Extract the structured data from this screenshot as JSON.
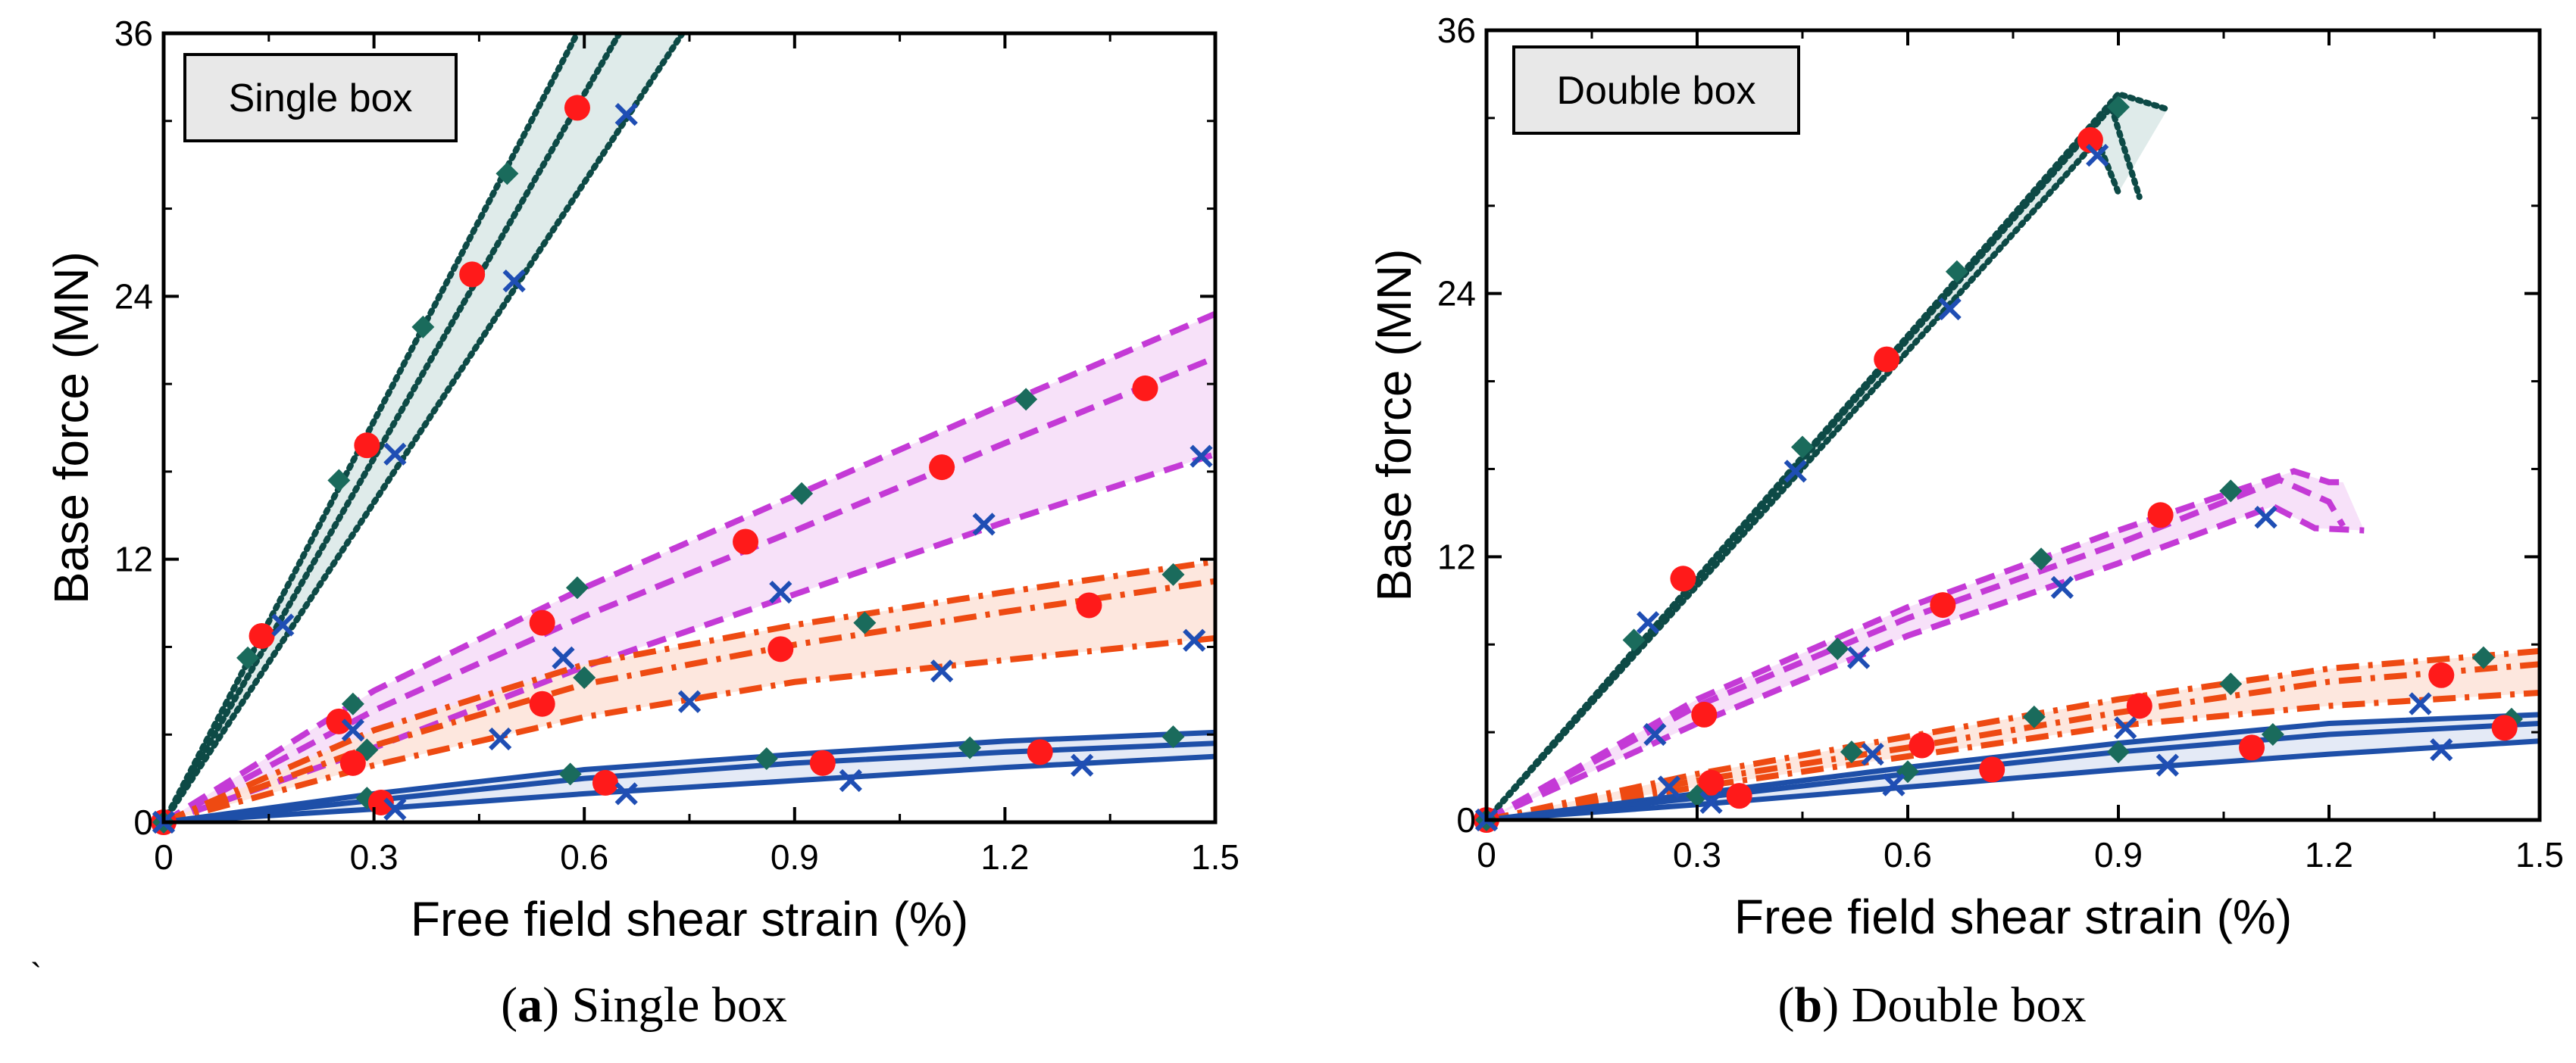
{
  "chart_data": [
    {
      "id": "a",
      "type": "line",
      "panel_label": "a",
      "caption": "Single box",
      "inset_label": "Single box",
      "xlabel": "Free field shear strain (%)",
      "ylabel": "Base force (MN)",
      "xlim": [
        0,
        1.5
      ],
      "ylim": [
        0,
        36
      ],
      "xticks": [
        "0",
        "0.3",
        "0.6",
        "0.9",
        "1.2",
        "1.5"
      ],
      "yticks": [
        "0",
        "12",
        "24",
        "36"
      ],
      "groups": [
        {
          "name": "dotted-steep",
          "color": "#0d4a46",
          "band_color": "#d9e8e6",
          "style": "dotted",
          "lines": [
            {
              "x": [
                0,
                0.59
              ],
              "y": [
                0,
                36
              ],
              "marker": null
            },
            {
              "x": [
                0,
                0.65
              ],
              "y": [
                0,
                36
              ],
              "marker": null
            },
            {
              "x": [
                0,
                0.74
              ],
              "y": [
                0,
                36
              ],
              "marker": null
            }
          ],
          "markers": [
            {
              "shape": "diamond",
              "color": "#1a6b5c",
              "x": [
                0.12,
                0.25,
                0.37,
                0.49
              ],
              "y": [
                7.5,
                15.6,
                22.6,
                29.6
              ]
            },
            {
              "shape": "circle",
              "color": "#ff1a1a",
              "x": [
                0.14,
                0.29,
                0.44,
                0.59
              ],
              "y": [
                8.5,
                17.2,
                25.0,
                32.6
              ]
            },
            {
              "shape": "x",
              "color": "#1f4eb4",
              "x": [
                0.17,
                0.33,
                0.5,
                0.66
              ],
              "y": [
                9.0,
                16.8,
                24.7,
                32.3
              ]
            }
          ]
        },
        {
          "name": "dashed",
          "color": "#c43ad6",
          "band_color": "#f6dcf8",
          "style": "dashed",
          "lines": [
            {
              "x": [
                0,
                0.3,
                0.6,
                0.9,
                1.2,
                1.5
              ],
              "y": [
                0,
                6.0,
                10.7,
                14.9,
                19.1,
                23.2
              ]
            },
            {
              "x": [
                0,
                0.3,
                0.6,
                0.9,
                1.2,
                1.5
              ],
              "y": [
                0,
                5.1,
                9.4,
                13.3,
                17.3,
                21.2
              ]
            },
            {
              "x": [
                0,
                0.3,
                0.6,
                0.9,
                1.2,
                1.5
              ],
              "y": [
                0,
                3.4,
                7.1,
                10.4,
                13.7,
                16.8
              ]
            }
          ],
          "markers": [
            {
              "shape": "diamond",
              "color": "#1a6b5c",
              "x": [
                0.27,
                0.59,
                0.91,
                1.23
              ],
              "y": [
                5.4,
                10.7,
                15.0,
                19.3
              ]
            },
            {
              "shape": "circle",
              "color": "#ff1a1a",
              "x": [
                0.25,
                0.54,
                0.83,
                1.11,
                1.4
              ],
              "y": [
                4.6,
                9.1,
                12.8,
                16.2,
                19.8
              ]
            },
            {
              "shape": "x",
              "color": "#1f4eb4",
              "x": [
                0.27,
                0.48,
                0.57,
                0.88,
                1.17,
                1.48
              ],
              "y": [
                4.2,
                3.8,
                7.5,
                10.5,
                13.6,
                16.7
              ]
            }
          ]
        },
        {
          "name": "dash-dot",
          "color": "#ee4a12",
          "band_color": "#fde3d8",
          "style": "dashdot",
          "lines": [
            {
              "x": [
                0,
                0.3,
                0.6,
                0.9,
                1.2,
                1.5
              ],
              "y": [
                0,
                4.2,
                7.2,
                9.0,
                10.5,
                11.9
              ]
            },
            {
              "x": [
                0,
                0.3,
                0.6,
                0.9,
                1.2,
                1.5
              ],
              "y": [
                0,
                3.5,
                6.3,
                8.1,
                9.6,
                11.0
              ]
            },
            {
              "x": [
                0,
                0.3,
                0.6,
                0.9,
                1.2,
                1.5
              ],
              "y": [
                0,
                2.6,
                4.8,
                6.4,
                7.4,
                8.4
              ]
            }
          ],
          "markers": [
            {
              "shape": "diamond",
              "color": "#1a6b5c",
              "x": [
                0.29,
                0.6,
                1.0,
                1.44
              ],
              "y": [
                3.3,
                6.6,
                9.1,
                11.3
              ]
            },
            {
              "shape": "circle",
              "color": "#ff1a1a",
              "x": [
                0.27,
                0.54,
                0.88,
                1.32
              ],
              "y": [
                2.7,
                5.4,
                7.9,
                9.9
              ]
            },
            {
              "shape": "x",
              "color": "#1f4eb4",
              "x": [
                0.75,
                1.11,
                1.47
              ],
              "y": [
                5.5,
                6.9,
                8.3
              ]
            }
          ]
        },
        {
          "name": "solid",
          "color": "#1e4fa8",
          "band_color": "#dfe6f4",
          "style": "solid",
          "lines": [
            {
              "x": [
                0,
                0.3,
                0.6,
                0.9,
                1.2,
                1.5
              ],
              "y": [
                0,
                1.3,
                2.4,
                3.1,
                3.7,
                4.1
              ]
            },
            {
              "x": [
                0,
                0.3,
                0.6,
                0.9,
                1.2,
                1.5
              ],
              "y": [
                0,
                1.0,
                2.0,
                2.7,
                3.2,
                3.6
              ]
            },
            {
              "x": [
                0,
                0.3,
                0.6,
                0.9,
                1.2,
                1.5
              ],
              "y": [
                0,
                0.6,
                1.3,
                1.9,
                2.5,
                3.0
              ]
            }
          ],
          "markers": [
            {
              "shape": "diamond",
              "color": "#1a6b5c",
              "x": [
                0.29,
                0.58,
                0.86,
                1.15,
                1.44
              ],
              "y": [
                1.1,
                2.2,
                2.9,
                3.4,
                3.9
              ]
            },
            {
              "shape": "circle",
              "color": "#ff1a1a",
              "x": [
                0.31,
                0.63,
                0.94,
                1.25
              ],
              "y": [
                0.9,
                1.8,
                2.7,
                3.2
              ]
            },
            {
              "shape": "x",
              "color": "#1f4eb4",
              "x": [
                0.33,
                0.66,
                0.98,
                1.31
              ],
              "y": [
                0.6,
                1.3,
                1.9,
                2.6
              ]
            }
          ]
        }
      ],
      "origin_markers": true
    },
    {
      "id": "b",
      "type": "line",
      "panel_label": "b",
      "caption": "Double box",
      "inset_label": "Double box",
      "xlabel": "Free field shear strain (%)",
      "ylabel": "Base force (MN)",
      "xlim": [
        0,
        1.5
      ],
      "ylim": [
        0,
        36
      ],
      "xticks": [
        "0",
        "0.3",
        "0.6",
        "0.9",
        "1.2",
        "1.5"
      ],
      "yticks": [
        "0",
        "12",
        "24",
        "36"
      ],
      "groups": [
        {
          "name": "dotted-steep",
          "color": "#0d4a46",
          "band_color": "#d9e8e6",
          "style": "dotted",
          "lines": [
            {
              "x": [
                0,
                0.9,
                0.97
              ],
              "y": [
                0,
                33.1,
                32.4
              ]
            },
            {
              "x": [
                0,
                0.89,
                0.93
              ],
              "y": [
                0,
                32.5,
                28.4
              ]
            },
            {
              "x": [
                0,
                0.87,
                0.9
              ],
              "y": [
                0,
                31.0,
                28.6
              ]
            }
          ],
          "markers": [
            {
              "shape": "diamond",
              "color": "#1a6b5c",
              "x": [
                0.21,
                0.45,
                0.67,
                0.9
              ],
              "y": [
                8.2,
                17.0,
                25.0,
                32.5
              ]
            },
            {
              "shape": "circle",
              "color": "#ff1a1a",
              "x": [
                0.28,
                0.57,
                0.86
              ],
              "y": [
                11.0,
                21.0,
                31.0
              ]
            },
            {
              "shape": "x",
              "color": "#1f4eb4",
              "x": [
                0.23,
                0.44,
                0.66,
                0.87
              ],
              "y": [
                9.0,
                15.9,
                23.3,
                30.3
              ]
            }
          ]
        },
        {
          "name": "dashed",
          "color": "#c43ad6",
          "band_color": "#f6dcf8",
          "style": "dashed",
          "lines": [
            {
              "x": [
                0,
                0.3,
                0.6,
                0.9,
                1.15,
                1.2,
                1.22
              ],
              "y": [
                0,
                5.5,
                9.7,
                13.2,
                15.9,
                15.4,
                15.4
              ]
            },
            {
              "x": [
                0,
                0.3,
                0.6,
                0.9,
                1.13,
                1.2,
                1.22
              ],
              "y": [
                0,
                5.2,
                9.2,
                12.6,
                15.5,
                14.5,
                13.4
              ]
            },
            {
              "x": [
                0,
                0.3,
                0.6,
                0.9,
                1.12,
                1.18,
                1.25
              ],
              "y": [
                0,
                4.4,
                8.4,
                11.7,
                14.3,
                13.3,
                13.2
              ]
            }
          ],
          "markers": [
            {
              "shape": "diamond",
              "color": "#1a6b5c",
              "x": [
                0.5,
                0.79,
                1.06
              ],
              "y": [
                7.8,
                11.9,
                15.0
              ]
            },
            {
              "shape": "circle",
              "color": "#ff1a1a",
              "x": [
                0.31,
                0.65,
                0.96
              ],
              "y": [
                4.8,
                9.8,
                13.9
              ]
            },
            {
              "shape": "x",
              "color": "#1f4eb4",
              "x": [
                0.24,
                0.53,
                0.82,
                1.11
              ],
              "y": [
                3.9,
                7.4,
                10.6,
                13.8
              ]
            }
          ]
        },
        {
          "name": "dash-dot",
          "color": "#ee4a12",
          "band_color": "#fde3d8",
          "style": "dashdot",
          "lines": [
            {
              "x": [
                0,
                0.3,
                0.6,
                0.9,
                1.2,
                1.5
              ],
              "y": [
                0,
                2.1,
                3.8,
                5.5,
                6.9,
                7.7
              ]
            },
            {
              "x": [
                0,
                0.3,
                0.6,
                0.9,
                1.2,
                1.5
              ],
              "y": [
                0,
                1.8,
                3.3,
                4.9,
                6.3,
                7.1
              ]
            },
            {
              "x": [
                0,
                0.3,
                0.6,
                0.9,
                1.2,
                1.5
              ],
              "y": [
                0,
                1.5,
                2.9,
                4.3,
                5.2,
                5.8
              ]
            }
          ],
          "markers": [
            {
              "shape": "diamond",
              "color": "#1a6b5c",
              "x": [
                0.52,
                0.78,
                1.06,
                1.42
              ],
              "y": [
                3.1,
                4.7,
                6.2,
                7.4
              ]
            },
            {
              "shape": "circle",
              "color": "#ff1a1a",
              "x": [
                0.32,
                0.62,
                0.93,
                1.36
              ],
              "y": [
                1.7,
                3.4,
                5.2,
                6.6
              ]
            },
            {
              "shape": "x",
              "color": "#1f4eb4",
              "x": [
                0.26,
                0.55,
                0.91,
                1.33
              ],
              "y": [
                1.5,
                3.0,
                4.2,
                5.3
              ]
            }
          ]
        },
        {
          "name": "solid",
          "color": "#1e4fa8",
          "band_color": "#dfe6f4",
          "style": "solid",
          "lines": [
            {
              "x": [
                0,
                0.3,
                0.6,
                0.9,
                1.2,
                1.5
              ],
              "y": [
                0,
                1.2,
                2.4,
                3.5,
                4.4,
                4.8
              ]
            },
            {
              "x": [
                0,
                0.3,
                0.6,
                0.9,
                1.2,
                1.5
              ],
              "y": [
                0,
                1.0,
                2.1,
                3.1,
                3.9,
                4.4
              ]
            },
            {
              "x": [
                0,
                0.3,
                0.6,
                0.9,
                1.2,
                1.5
              ],
              "y": [
                0,
                0.7,
                1.5,
                2.3,
                3.0,
                3.6
              ]
            }
          ],
          "markers": [
            {
              "shape": "diamond",
              "color": "#1a6b5c",
              "x": [
                0.3,
                0.6,
                0.9,
                1.12,
                1.46
              ],
              "y": [
                1.1,
                2.2,
                3.1,
                3.9,
                4.6
              ]
            },
            {
              "shape": "circle",
              "color": "#ff1a1a",
              "x": [
                0.36,
                0.72,
                1.09,
                1.45
              ],
              "y": [
                1.1,
                2.3,
                3.3,
                4.2
              ]
            },
            {
              "shape": "x",
              "color": "#1f4eb4",
              "x": [
                0.32,
                0.58,
                0.97,
                1.36
              ],
              "y": [
                0.8,
                1.6,
                2.5,
                3.2
              ]
            }
          ]
        }
      ],
      "origin_markers": true
    }
  ],
  "captions": [
    {
      "label": "a",
      "text": "Single box"
    },
    {
      "label": "b",
      "text": "Double box"
    }
  ],
  "stray_mark": "`"
}
